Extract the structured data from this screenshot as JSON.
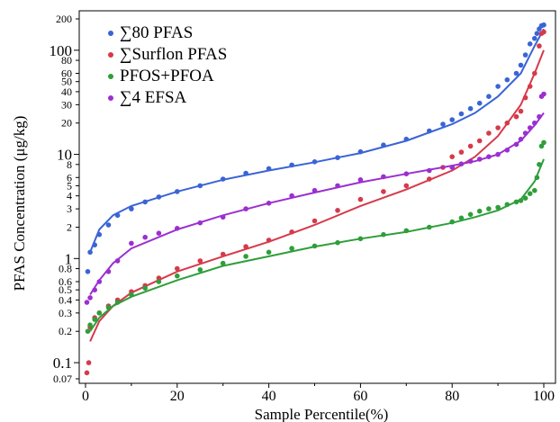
{
  "chart_data": {
    "type": "scatter",
    "title": "",
    "xlabel": "Sample Percentile(%)",
    "ylabel": "PFAS Concentration (μg/kg)",
    "xlim": [
      0,
      100
    ],
    "ylim": [
      0.07,
      200
    ],
    "yscale": "log",
    "grid": false,
    "legend_position": "top-left",
    "x_ticks": [
      0,
      20,
      40,
      60,
      80,
      100
    ],
    "x_tick_labels": [
      "0",
      "20",
      "40",
      "60",
      "80",
      "100"
    ],
    "y_ticks": [
      0.07,
      0.1,
      0.2,
      0.3,
      0.4,
      0.5,
      0.6,
      0.8,
      1,
      2,
      3,
      4,
      5,
      6,
      8,
      10,
      20,
      30,
      40,
      50,
      60,
      80,
      100,
      200
    ],
    "y_tick_labels": [
      "0.07",
      "0.1",
      "0.2",
      "0.3",
      "0.4",
      "0.5",
      "0.6",
      "0.8",
      "1",
      "2",
      "3",
      "4",
      "5",
      "6",
      "8",
      "10",
      "20",
      "30",
      "40",
      "50",
      "60",
      "80",
      "100",
      "200"
    ],
    "y_tick_major": [
      0.1,
      1,
      10,
      100
    ],
    "series": [
      {
        "name": "∑80 PFAS",
        "color": "#3a64d6",
        "x": [
          0.5,
          1,
          2,
          3,
          5,
          7,
          10,
          13,
          16,
          20,
          25,
          30,
          35,
          40,
          45,
          50,
          55,
          60,
          65,
          70,
          75,
          78,
          80,
          82,
          84,
          86,
          88,
          90,
          92,
          94,
          95,
          96,
          97,
          98,
          98.5,
          99,
          99.5,
          100
        ],
        "y": [
          0.75,
          1.15,
          1.35,
          1.7,
          2.1,
          2.6,
          3.0,
          3.5,
          3.9,
          4.4,
          5.0,
          5.8,
          6.6,
          7.3,
          7.9,
          8.5,
          9.3,
          10.6,
          12.3,
          14.0,
          16.8,
          19.5,
          21.5,
          24.5,
          27.5,
          31.0,
          36.0,
          45.0,
          52.0,
          60.0,
          72.0,
          90.0,
          115.0,
          130.0,
          145.0,
          160.0,
          172.0,
          175.0
        ],
        "fit_x": [
          1,
          3,
          6,
          10,
          20,
          30,
          40,
          50,
          60,
          70,
          80,
          85,
          90,
          95,
          98,
          100
        ],
        "fit_y": [
          1.15,
          1.9,
          2.6,
          3.2,
          4.4,
          5.7,
          7.0,
          8.4,
          10.3,
          13.5,
          19.5,
          25.0,
          36.0,
          60.0,
          110.0,
          160.0
        ]
      },
      {
        "name": "∑Surflon  PFAS",
        "color": "#d63a4a",
        "x": [
          0.3,
          0.7,
          1,
          2,
          3,
          5,
          7,
          10,
          13,
          16,
          20,
          25,
          30,
          35,
          40,
          45,
          50,
          55,
          60,
          65,
          70,
          75,
          78,
          80,
          82,
          84,
          86,
          88,
          90,
          92,
          94,
          95,
          96,
          97,
          98,
          99,
          99.5,
          100
        ],
        "y": [
          0.08,
          0.1,
          0.22,
          0.27,
          0.3,
          0.35,
          0.4,
          0.48,
          0.55,
          0.65,
          0.8,
          0.95,
          1.1,
          1.3,
          1.5,
          1.8,
          2.3,
          2.9,
          3.7,
          4.4,
          5.0,
          5.8,
          7.5,
          9.5,
          10.5,
          12.0,
          13.5,
          16.0,
          18.0,
          20.0,
          23.0,
          26.0,
          35.0,
          45.0,
          60.0,
          110.0,
          145.0,
          150.0
        ],
        "fit_x": [
          1,
          3,
          6,
          10,
          20,
          30,
          40,
          50,
          60,
          70,
          80,
          85,
          90,
          95,
          98,
          100
        ],
        "fit_y": [
          0.16,
          0.25,
          0.35,
          0.47,
          0.75,
          1.05,
          1.45,
          2.1,
          3.2,
          4.6,
          7.0,
          9.5,
          15.0,
          30.0,
          60.0,
          100.0
        ]
      },
      {
        "name": "PFOS+PFOA",
        "color": "#2f9e3a",
        "x": [
          0.5,
          1,
          2,
          3,
          5,
          7,
          10,
          13,
          16,
          20,
          25,
          30,
          35,
          40,
          45,
          50,
          55,
          60,
          65,
          70,
          75,
          80,
          82,
          84,
          86,
          88,
          90,
          92,
          94,
          95,
          96,
          97,
          98,
          98.5,
          99,
          99.5,
          100
        ],
        "y": [
          0.2,
          0.23,
          0.26,
          0.3,
          0.34,
          0.38,
          0.45,
          0.52,
          0.6,
          0.68,
          0.78,
          0.9,
          1.05,
          1.15,
          1.25,
          1.32,
          1.42,
          1.55,
          1.7,
          1.85,
          2.0,
          2.25,
          2.45,
          2.65,
          2.85,
          3.0,
          3.1,
          3.3,
          3.5,
          3.6,
          3.8,
          4.2,
          4.5,
          6.0,
          8.0,
          12.0,
          13.0
        ],
        "fit_x": [
          1,
          3,
          6,
          10,
          20,
          30,
          40,
          50,
          60,
          70,
          80,
          85,
          90,
          95,
          98,
          100
        ],
        "fit_y": [
          0.2,
          0.27,
          0.35,
          0.43,
          0.62,
          0.85,
          1.05,
          1.3,
          1.55,
          1.8,
          2.2,
          2.5,
          2.9,
          3.7,
          5.5,
          9.0
        ]
      },
      {
        "name": "∑4 EFSA",
        "color": "#9b2fd0",
        "x": [
          0.3,
          1,
          2,
          3,
          5,
          7,
          10,
          13,
          16,
          20,
          25,
          30,
          35,
          40,
          45,
          50,
          55,
          60,
          65,
          70,
          75,
          80,
          82,
          84,
          86,
          88,
          90,
          92,
          94,
          95,
          96,
          97,
          98,
          99,
          99.5,
          100
        ],
        "y": [
          0.38,
          0.42,
          0.5,
          0.6,
          0.75,
          0.95,
          1.4,
          1.6,
          1.75,
          1.95,
          2.2,
          2.5,
          3.0,
          3.4,
          4.0,
          4.5,
          5.0,
          5.7,
          6.1,
          6.5,
          7.0,
          7.5,
          8.1,
          8.6,
          9.0,
          9.5,
          10.0,
          11.0,
          12.5,
          14.0,
          16.0,
          18.0,
          20.0,
          23.0,
          36.0,
          38.0
        ],
        "fit_x": [
          1,
          3,
          6,
          10,
          20,
          30,
          40,
          50,
          60,
          70,
          80,
          85,
          90,
          95,
          98,
          100
        ],
        "fit_y": [
          0.45,
          0.62,
          0.9,
          1.25,
          1.9,
          2.6,
          3.4,
          4.3,
          5.4,
          6.5,
          7.8,
          8.6,
          10.0,
          13.5,
          19.0,
          25.0
        ]
      }
    ]
  }
}
